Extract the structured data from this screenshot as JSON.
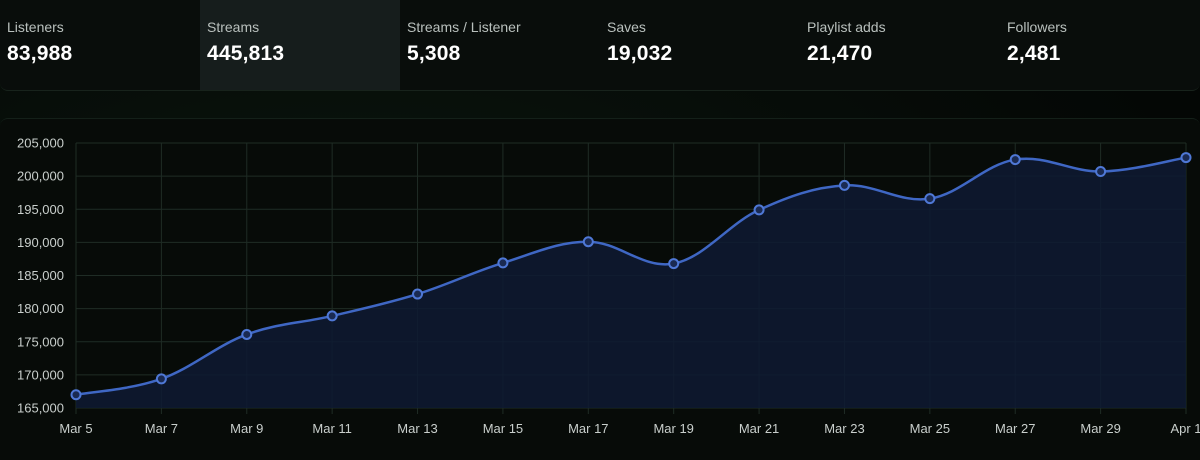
{
  "stats": [
    {
      "label": "Listeners",
      "value": "83,988",
      "active": false
    },
    {
      "label": "Streams",
      "value": "445,813",
      "active": true
    },
    {
      "label": "Streams / Listener",
      "value": "5,308",
      "active": false
    },
    {
      "label": "Saves",
      "value": "19,032",
      "active": false
    },
    {
      "label": "Playlist adds",
      "value": "21,470",
      "active": false
    },
    {
      "label": "Followers",
      "value": "2,481",
      "active": false
    }
  ],
  "colors": {
    "line": "#3f67c4",
    "fill": "#0e1a33",
    "grid": "#1f2c25",
    "active_tab": "#161d1c"
  },
  "chart_data": {
    "type": "area",
    "x": [
      "Mar 5",
      "Mar 7",
      "Mar 9",
      "Mar 11",
      "Mar 13",
      "Mar 15",
      "Mar 17",
      "Mar 19",
      "Mar 21",
      "Mar 23",
      "Mar 25",
      "Mar 27",
      "Mar 29",
      "Apr 1"
    ],
    "series": [
      {
        "values": [
          167000,
          169400,
          176100,
          178900,
          182200,
          186900,
          190100,
          186800,
          194900,
          198600,
          196600,
          202500,
          200700,
          202800
        ]
      }
    ],
    "y_ticks": [
      "165,000",
      "170,000",
      "175,000",
      "180,000",
      "185,000",
      "190,000",
      "195,000",
      "200,000",
      "205,000"
    ],
    "ylim": [
      165000,
      205000
    ],
    "grid": true,
    "legend": "none",
    "smooth": true
  }
}
